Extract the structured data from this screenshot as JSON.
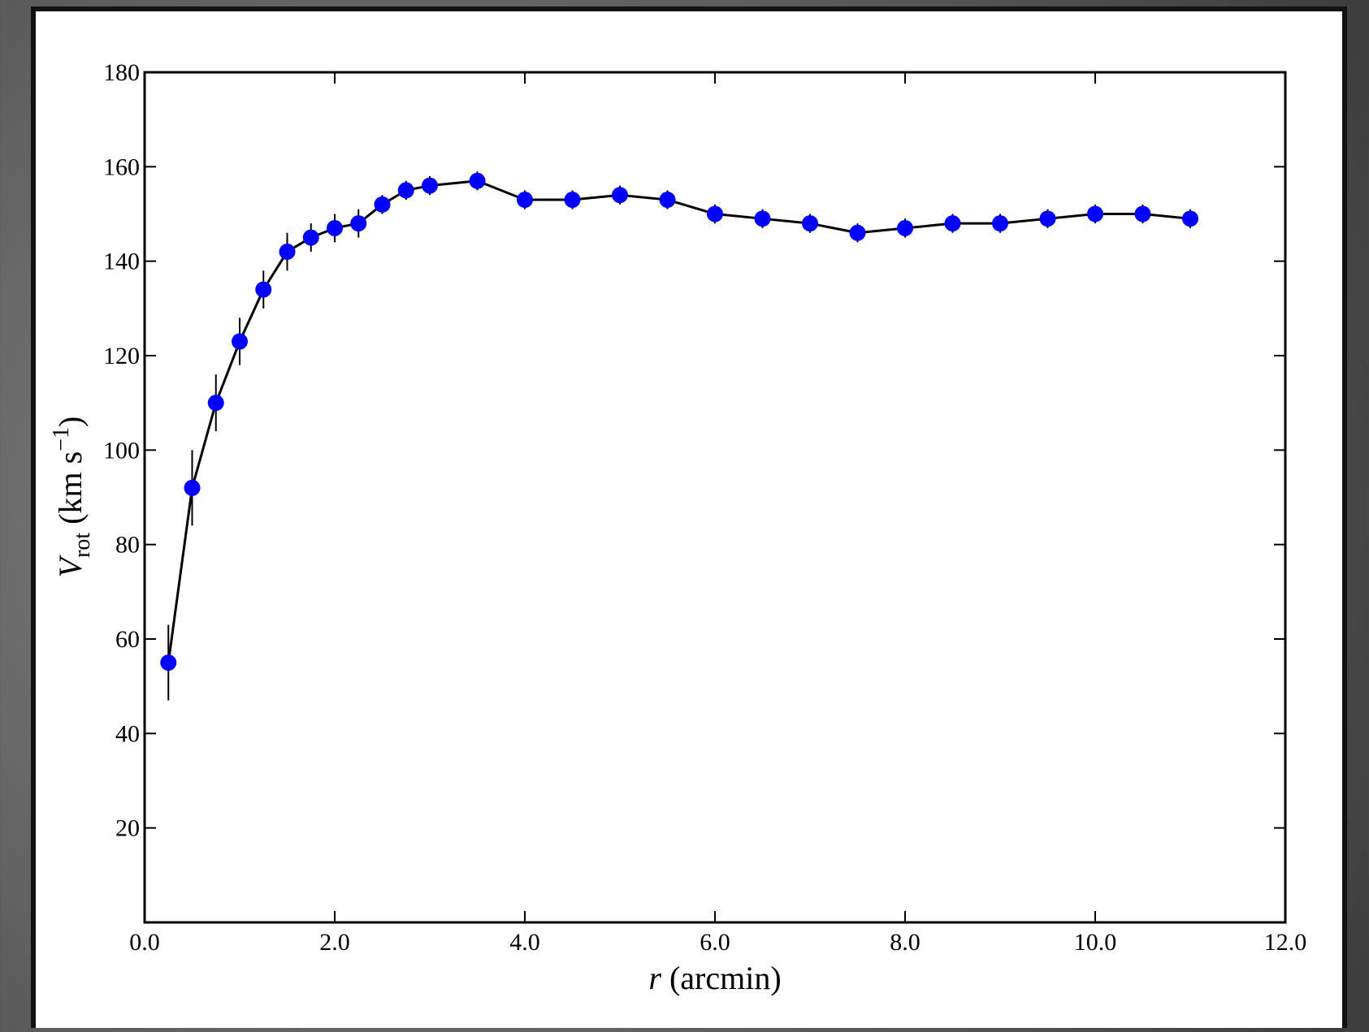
{
  "chart_data": {
    "type": "errorbar-line",
    "xlabel": [
      "r",
      " (arcmin)"
    ],
    "ylabel": [
      "V",
      "rot",
      " (km s",
      "−1",
      ")"
    ],
    "x": [
      0.25,
      0.5,
      0.75,
      1.0,
      1.25,
      1.5,
      1.75,
      2.0,
      2.25,
      2.5,
      2.75,
      3.0,
      3.5,
      4.0,
      4.5,
      5.0,
      5.5,
      6.0,
      6.5,
      7.0,
      7.5,
      8.0,
      8.5,
      9.0,
      9.5,
      10.0,
      10.5,
      11.0
    ],
    "values": [
      55,
      92,
      110,
      123,
      134,
      142,
      145,
      147,
      148,
      152,
      155,
      156,
      157,
      153,
      153,
      154,
      153,
      150,
      149,
      148,
      146,
      147,
      148,
      148,
      149,
      150,
      150,
      149
    ],
    "errors": [
      8,
      8,
      6,
      5,
      4,
      4,
      3,
      3,
      3,
      2,
      2,
      2,
      2,
      2,
      2,
      2,
      2,
      2,
      2,
      2,
      2,
      2,
      2,
      2,
      2,
      2,
      2,
      2
    ],
    "marker_color": "#0000ff",
    "line_color": "#000000",
    "xlim": [
      0,
      12
    ],
    "xticks": [
      {
        "value": 0,
        "label": "0.0"
      },
      {
        "value": 2,
        "label": "2.0"
      },
      {
        "value": 4,
        "label": "4.0"
      },
      {
        "value": 6,
        "label": "6.0"
      },
      {
        "value": 8,
        "label": "8.0"
      },
      {
        "value": 10,
        "label": "10.0"
      },
      {
        "value": 12,
        "label": "12.0"
      }
    ],
    "ylim": [
      0,
      180
    ],
    "yticks": [
      20,
      40,
      60,
      80,
      100,
      120,
      140,
      160,
      180
    ],
    "grid": false
  }
}
